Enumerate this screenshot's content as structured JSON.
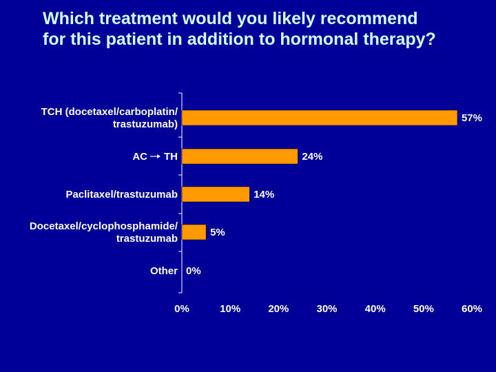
{
  "title": {
    "line1": "Which treatment would you likely recommend",
    "line2": "for this patient in addition to hormonal therapy?"
  },
  "colors": {
    "background": "#000099",
    "title": "#ccffff",
    "bar": "#ff9900",
    "text": "#ffffff"
  },
  "chart_data": {
    "type": "bar",
    "orientation": "horizontal",
    "categories": [
      [
        "TCH (docetaxel/carboplatin/",
        "trastuzumab)"
      ],
      [
        "AC → TH"
      ],
      [
        "Paclitaxel/trastuzumab"
      ],
      [
        "Docetaxel/cyclophosphamide/",
        "trastuzumab"
      ],
      [
        "Other"
      ]
    ],
    "values": [
      57,
      24,
      14,
      5,
      0
    ],
    "value_labels": [
      "57%",
      "24%",
      "14%",
      "5%",
      "0%"
    ],
    "xlim": [
      0,
      60
    ],
    "xticks": [
      "0%",
      "10%",
      "20%",
      "30%",
      "40%",
      "50%",
      "60%"
    ],
    "grid": false,
    "legend": "none"
  }
}
